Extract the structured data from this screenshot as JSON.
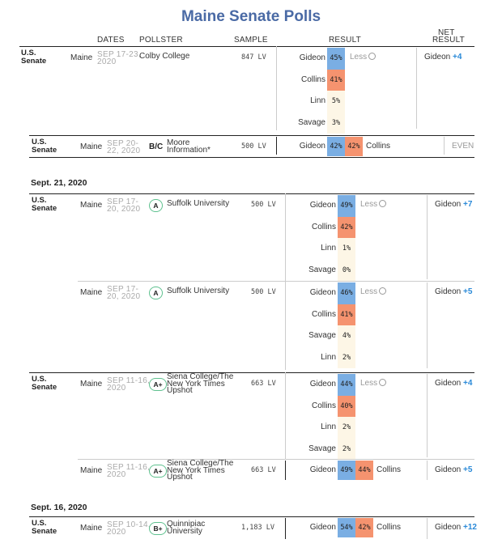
{
  "title": "Maine Senate Polls",
  "headers": {
    "dates": "DATES",
    "pollster": "POLLSTER",
    "sample": "SAMPLE",
    "result": "RESULT",
    "net_result_1": "NET",
    "net_result_2": "RESULT"
  },
  "colors": {
    "gideon": "#7aaee3",
    "collins": "#f5936f",
    "minor": "#fdf6e6",
    "net": "#2b8ad8",
    "grade_border": "#5fc18f"
  },
  "less_label": "Less",
  "date_headers": [
    "Sept. 21, 2020",
    "Sept. 16, 2020"
  ],
  "polls": [
    {
      "race": [
        "U.S.",
        "Senate"
      ],
      "state": "Maine",
      "dates": [
        "SEP 17-23,",
        "2020"
      ],
      "grade": "",
      "pollster": [
        "Colby College"
      ],
      "sample": "847 LV",
      "results": [
        {
          "name": "Gideon",
          "pct": "45%",
          "val": 45
        },
        {
          "name": "Collins",
          "pct": "41%",
          "val": 41
        },
        {
          "name": "Linn",
          "pct": "5%",
          "val": 5
        },
        {
          "name": "Savage",
          "pct": "3%",
          "val": 3
        }
      ],
      "net": {
        "name": "Gideon",
        "margin": "+4"
      }
    },
    {
      "race": [
        "U.S.",
        "Senate"
      ],
      "state": "Maine",
      "dates": [
        "SEP 20-",
        "22, 2020"
      ],
      "grade": "B/C",
      "pollster": [
        "Moore",
        "Information*"
      ],
      "sample": "500 LV",
      "results": [
        {
          "name": "Gideon",
          "pct": "42%",
          "val": 42
        },
        {
          "name": "Collins",
          "pct": "42%",
          "val": 42
        }
      ],
      "net": {
        "even": "EVEN"
      }
    },
    {
      "race": [
        "U.S.",
        "Senate"
      ],
      "state": "Maine",
      "dates": [
        "SEP 17-",
        "20, 2020"
      ],
      "grade": "A",
      "pollster": [
        "Suffolk University"
      ],
      "sample": "500 LV",
      "results": [
        {
          "name": "Gideon",
          "pct": "49%",
          "val": 49
        },
        {
          "name": "Collins",
          "pct": "42%",
          "val": 42
        },
        {
          "name": "Linn",
          "pct": "1%",
          "val": 1
        },
        {
          "name": "Savage",
          "pct": "0%",
          "val": 0
        }
      ],
      "net": {
        "name": "Gideon",
        "margin": "+7"
      }
    },
    {
      "race": [],
      "state": "Maine",
      "dates": [
        "SEP 17-",
        "20, 2020"
      ],
      "grade": "A",
      "pollster": [
        "Suffolk University"
      ],
      "sample": "500 LV",
      "results": [
        {
          "name": "Gideon",
          "pct": "46%",
          "val": 46
        },
        {
          "name": "Collins",
          "pct": "41%",
          "val": 41
        },
        {
          "name": "Savage",
          "pct": "4%",
          "val": 4
        },
        {
          "name": "Linn",
          "pct": "2%",
          "val": 2
        }
      ],
      "net": {
        "name": "Gideon",
        "margin": "+5"
      }
    },
    {
      "race": [
        "U.S.",
        "Senate"
      ],
      "state": "Maine",
      "dates": [
        "SEP 11-16,",
        "2020"
      ],
      "grade": "A+",
      "pollster": [
        "Siena College/The",
        "New York Times",
        "Upshot"
      ],
      "sample": "663 LV",
      "results": [
        {
          "name": "Gideon",
          "pct": "44%",
          "val": 44
        },
        {
          "name": "Collins",
          "pct": "40%",
          "val": 40
        },
        {
          "name": "Linn",
          "pct": "2%",
          "val": 2
        },
        {
          "name": "Savage",
          "pct": "2%",
          "val": 2
        }
      ],
      "net": {
        "name": "Gideon",
        "margin": "+4"
      }
    },
    {
      "race": [],
      "state": "Maine",
      "dates": [
        "SEP 11-16,",
        "2020"
      ],
      "grade": "A+",
      "pollster": [
        "Siena College/The",
        "New York Times",
        "Upshot"
      ],
      "sample": "663 LV",
      "results": [
        {
          "name": "Gideon",
          "pct": "49%",
          "val": 49
        },
        {
          "name": "Collins",
          "pct": "44%",
          "val": 44
        }
      ],
      "net": {
        "name": "Gideon",
        "margin": "+5"
      }
    },
    {
      "race": [
        "U.S.",
        "Senate"
      ],
      "state": "Maine",
      "dates": [
        "SEP 10-14,",
        "2020"
      ],
      "grade": "B+",
      "pollster": [
        "Quinnipiac",
        "University"
      ],
      "sample": "1,183 LV",
      "results": [
        {
          "name": "Gideon",
          "pct": "54%",
          "val": 54
        },
        {
          "name": "Collins",
          "pct": "42%",
          "val": 42
        }
      ],
      "net": {
        "name": "Gideon",
        "margin": "+12"
      }
    }
  ]
}
